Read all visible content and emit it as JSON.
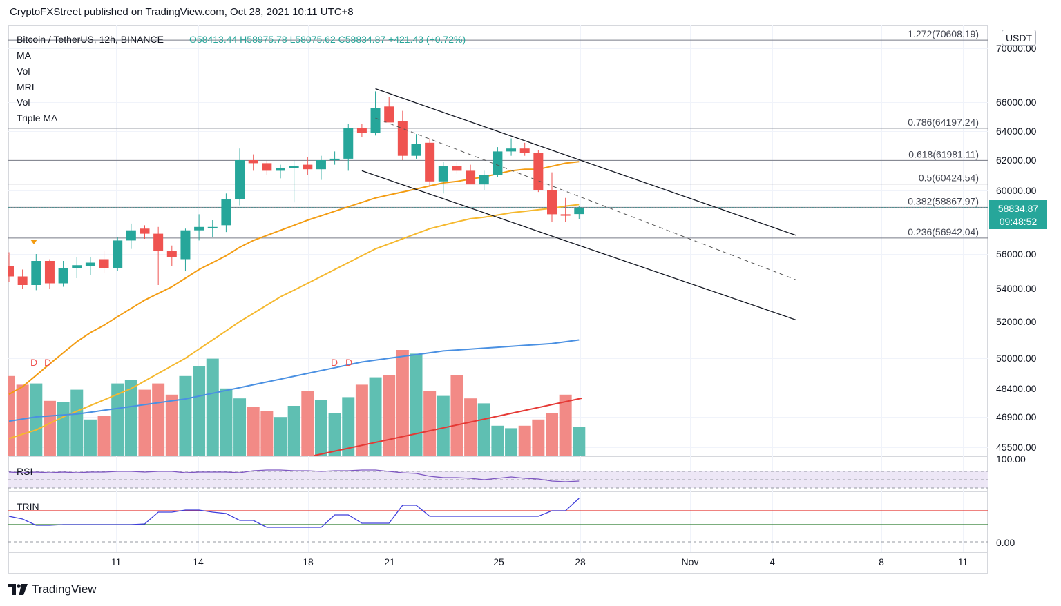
{
  "header": {
    "publisher": "CryptoFXStreet published on TradingView.com, Oct 28, 2021 10:11 UTC+8"
  },
  "legend": {
    "symbol": "Bitcoin / TetherUS, 12h, BINANCE",
    "ohlc": "O58413.44  H58975.78  L58075.62  C58834.87  +421.43 (+0.72%)",
    "indicators": [
      "MA",
      "Vol",
      "MRI",
      "Vol",
      "Triple MA"
    ]
  },
  "currency_badge": "USDT",
  "price_label": {
    "price": "58834.87",
    "countdown": "09:48:52"
  },
  "branding": {
    "name": "TradingView"
  },
  "colors": {
    "up": "#26a69a",
    "down": "#ef5350",
    "vol_up": "#5fbfb2",
    "vol_down": "#f28a86",
    "ma_orange": "#f39c12",
    "ma_yellow": "#f5b82e",
    "ma_blue": "#4a90e2",
    "vol_ma": "#e53935",
    "rsi": "#7e57c2",
    "trin": "#3d3ddb",
    "label_bg": "#26a69a"
  },
  "chart_data": {
    "type": "candlestick",
    "title": "Bitcoin / TetherUS, 12h, BINANCE",
    "ylim": [
      45000,
      71500
    ],
    "y_ticks": [
      "70000.00",
      "66000.00",
      "64000.00",
      "62000.00",
      "60000.00",
      "56000.00",
      "54000.00",
      "52000.00",
      "50000.00",
      "48400.00",
      "46900.00",
      "45500.00"
    ],
    "x_ticks": [
      "11",
      "14",
      "18",
      "21",
      "25",
      "28",
      "Nov",
      "4",
      "8",
      "11"
    ],
    "fib_levels": [
      {
        "label": "1.272(70608.19)",
        "value": 70608.19
      },
      {
        "label": "0.786(64197.24)",
        "value": 64197.24
      },
      {
        "label": "0.618(61981.11)",
        "value": 61981.11
      },
      {
        "label": "0.5(60424.54)",
        "value": 60424.54
      },
      {
        "label": "0.382(58867.97)",
        "value": 58867.97
      },
      {
        "label": "0.236(56942.04)",
        "value": 56942.04
      }
    ],
    "candles": [
      {
        "o": 55300,
        "h": 56100,
        "l": 54400,
        "c": 54700
      },
      {
        "o": 54700,
        "h": 55100,
        "l": 54000,
        "c": 54200
      },
      {
        "o": 54200,
        "h": 56000,
        "l": 53900,
        "c": 55600
      },
      {
        "o": 55600,
        "h": 55700,
        "l": 54000,
        "c": 54300
      },
      {
        "o": 54300,
        "h": 55600,
        "l": 54100,
        "c": 55200
      },
      {
        "o": 55200,
        "h": 55800,
        "l": 54600,
        "c": 55350
      },
      {
        "o": 55300,
        "h": 55800,
        "l": 54800,
        "c": 55500
      },
      {
        "o": 55700,
        "h": 56200,
        "l": 54900,
        "c": 55200
      },
      {
        "o": 55200,
        "h": 57000,
        "l": 55000,
        "c": 56800
      },
      {
        "o": 56800,
        "h": 57800,
        "l": 56300,
        "c": 57400
      },
      {
        "o": 57500,
        "h": 57700,
        "l": 56900,
        "c": 57200
      },
      {
        "o": 57200,
        "h": 57600,
        "l": 54200,
        "c": 56200
      },
      {
        "o": 56200,
        "h": 56500,
        "l": 55300,
        "c": 55800
      },
      {
        "o": 55700,
        "h": 57500,
        "l": 55000,
        "c": 57400
      },
      {
        "o": 57400,
        "h": 58400,
        "l": 56800,
        "c": 57600
      },
      {
        "o": 57600,
        "h": 58000,
        "l": 57000,
        "c": 57600
      },
      {
        "o": 57700,
        "h": 59800,
        "l": 57300,
        "c": 59400
      },
      {
        "o": 59400,
        "h": 62800,
        "l": 59000,
        "c": 62000
      },
      {
        "o": 62000,
        "h": 62400,
        "l": 61300,
        "c": 61800
      },
      {
        "o": 61800,
        "h": 62000,
        "l": 61000,
        "c": 61300
      },
      {
        "o": 61300,
        "h": 61700,
        "l": 60800,
        "c": 61500
      },
      {
        "o": 61500,
        "h": 62000,
        "l": 59200,
        "c": 61600
      },
      {
        "o": 61700,
        "h": 62200,
        "l": 61000,
        "c": 61400
      },
      {
        "o": 61400,
        "h": 62300,
        "l": 60700,
        "c": 62000
      },
      {
        "o": 62000,
        "h": 62600,
        "l": 61700,
        "c": 62100
      },
      {
        "o": 62100,
        "h": 64500,
        "l": 61300,
        "c": 64200
      },
      {
        "o": 64200,
        "h": 64500,
        "l": 63600,
        "c": 63900
      },
      {
        "o": 63900,
        "h": 66800,
        "l": 63700,
        "c": 65600
      },
      {
        "o": 65700,
        "h": 66400,
        "l": 64800,
        "c": 64600
      },
      {
        "o": 64700,
        "h": 65400,
        "l": 62000,
        "c": 62300
      },
      {
        "o": 62300,
        "h": 63800,
        "l": 62100,
        "c": 63100
      },
      {
        "o": 63200,
        "h": 63500,
        "l": 60300,
        "c": 60600
      },
      {
        "o": 60600,
        "h": 61900,
        "l": 59800,
        "c": 61600
      },
      {
        "o": 61600,
        "h": 61900,
        "l": 61100,
        "c": 61300
      },
      {
        "o": 61300,
        "h": 61700,
        "l": 60500,
        "c": 60400
      },
      {
        "o": 60400,
        "h": 61300,
        "l": 60000,
        "c": 61000
      },
      {
        "o": 61000,
        "h": 62900,
        "l": 60900,
        "c": 62600
      },
      {
        "o": 62600,
        "h": 63500,
        "l": 62300,
        "c": 62800
      },
      {
        "o": 62800,
        "h": 63200,
        "l": 62300,
        "c": 62500
      },
      {
        "o": 62500,
        "h": 62700,
        "l": 59900,
        "c": 60000
      },
      {
        "o": 60000,
        "h": 61200,
        "l": 57900,
        "c": 58400
      },
      {
        "o": 58400,
        "h": 59500,
        "l": 57900,
        "c": 58300
      },
      {
        "o": 58413.44,
        "h": 58975.78,
        "l": 58075.62,
        "c": 58834.87
      }
    ],
    "volume": [
      0.64,
      0.57,
      0.58,
      0.44,
      0.43,
      0.53,
      0.29,
      0.32,
      0.58,
      0.61,
      0.53,
      0.58,
      0.49,
      0.64,
      0.72,
      0.78,
      0.54,
      0.46,
      0.39,
      0.36,
      0.31,
      0.4,
      0.52,
      0.45,
      0.34,
      0.47,
      0.57,
      0.63,
      0.65,
      0.85,
      0.82,
      0.52,
      0.48,
      0.65,
      0.46,
      0.42,
      0.24,
      0.22,
      0.24,
      0.29,
      0.34,
      0.49,
      0.23
    ],
    "ma_series": [
      {
        "name": "MA short",
        "values": [
          48100,
          48500,
          49100,
          49700,
          50300,
          50900,
          51400,
          51800,
          52300,
          52800,
          53300,
          53700,
          54100,
          54600,
          55100,
          55500,
          55900,
          56400,
          56800,
          57100,
          57400,
          57700,
          58000,
          58300,
          58600,
          58900,
          59200,
          59500,
          59700,
          59900,
          60100,
          60300,
          60500,
          60600,
          60750,
          60900,
          61100,
          61300,
          61400,
          61400,
          61600,
          61800,
          61900
        ]
      },
      {
        "name": "MA mid",
        "values": [
          45900,
          46100,
          46300,
          46600,
          46900,
          47200,
          47500,
          47800,
          48100,
          48400,
          48800,
          49200,
          49600,
          50000,
          50500,
          51000,
          51500,
          52000,
          52500,
          53000,
          53500,
          53900,
          54300,
          54700,
          55100,
          55500,
          55900,
          56300,
          56600,
          56900,
          57200,
          57500,
          57700,
          57900,
          58100,
          58200,
          58350,
          58500,
          58600,
          58700,
          58800,
          58950,
          59050
        ]
      },
      {
        "name": "MA long",
        "values": [
          46700,
          46800,
          46900,
          46950,
          47000,
          47050,
          47150,
          47250,
          47350,
          47450,
          47550,
          47650,
          47750,
          47850,
          48000,
          48150,
          48300,
          48450,
          48600,
          48750,
          48900,
          49050,
          49200,
          49350,
          49500,
          49650,
          49800,
          49900,
          50000,
          50100,
          50200,
          50300,
          50400,
          50450,
          50500,
          50550,
          50600,
          50650,
          50700,
          50750,
          50800,
          50900,
          51000
        ]
      }
    ],
    "channel": {
      "upper": [
        [
          27,
          67000
        ],
        [
          58,
          57100
        ]
      ],
      "lower": [
        [
          26,
          61300
        ],
        [
          58,
          52100
        ]
      ],
      "mid": [
        [
          27,
          64900
        ],
        [
          58,
          54500
        ]
      ]
    },
    "subpanes": [
      "RSI",
      "TRIN"
    ],
    "d_markers": [
      "D",
      "D",
      "D",
      "D"
    ]
  }
}
